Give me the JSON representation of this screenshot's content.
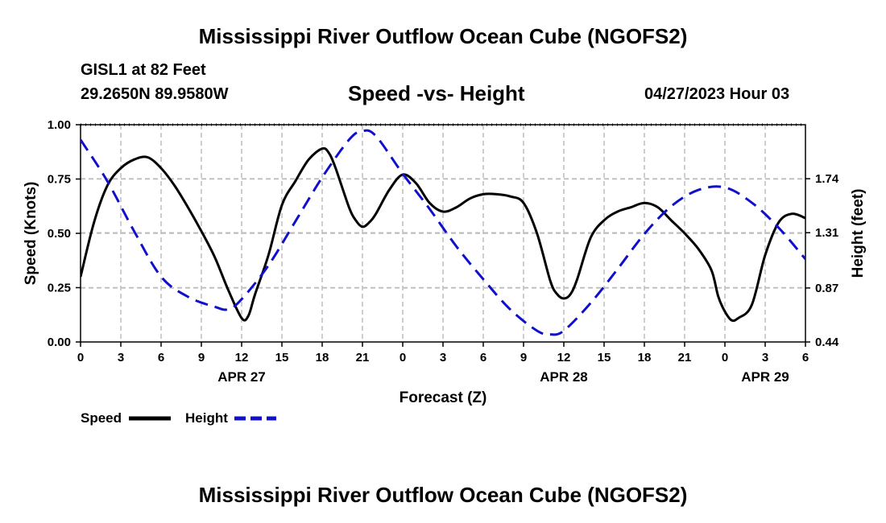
{
  "header": {
    "title": "Mississippi River Outflow Ocean Cube (NGOFS2)",
    "station": "GISL1 at 82 Feet",
    "coords": "29.2650N  89.9580W",
    "subtitle": "Speed -vs- Height",
    "datetime": "04/27/2023 Hour 03"
  },
  "footer": {
    "title": "Mississippi River Outflow Ocean Cube (NGOFS2)"
  },
  "colors": {
    "speed": "#000000",
    "height": "#1010cc",
    "grid": "#bdbdbd"
  },
  "chart_data": {
    "type": "line",
    "xlabel": "Forecast (Z)",
    "ylabel": "Speed (Knots)",
    "y2label": "Height (feet)",
    "xlim": [
      0,
      54
    ],
    "ylim": [
      0,
      1
    ],
    "y2lim": [
      0.44,
      2.17
    ],
    "x_tick_labels": [
      "0",
      "3",
      "6",
      "9",
      "12",
      "15",
      "18",
      "21",
      "0",
      "3",
      "6",
      "9",
      "12",
      "15",
      "18",
      "21",
      "0",
      "3",
      "6"
    ],
    "y_ticks": [
      "0.00",
      "0.25",
      "0.50",
      "0.75",
      "1.00"
    ],
    "y2_ticks": [
      "0.44",
      "0.87",
      "1.31",
      "1.74"
    ],
    "date_labels": [
      {
        "x": 12,
        "label": "APR 27"
      },
      {
        "x": 36,
        "label": "APR 28"
      },
      {
        "x": 51,
        "label": "APR 29"
      }
    ],
    "legend": [
      "Speed",
      "Height"
    ],
    "series": [
      {
        "name": "Speed",
        "axis": "left",
        "x": [
          0,
          1,
          2,
          3,
          4,
          5,
          6,
          7,
          8,
          9,
          10,
          11,
          12,
          12.5,
          13,
          14,
          15,
          16,
          17,
          18,
          18.5,
          19,
          20,
          20.5,
          21,
          21.5,
          22,
          23,
          24,
          25,
          26,
          27,
          28,
          29,
          30,
          31,
          32,
          33,
          34,
          35,
          35.5,
          36,
          36.5,
          37,
          38,
          39,
          40,
          41,
          42,
          43,
          44,
          45,
          46,
          47,
          47.5,
          48,
          48.5,
          49,
          50,
          51,
          52,
          53,
          54
        ],
        "values": [
          0.3,
          0.55,
          0.72,
          0.8,
          0.84,
          0.85,
          0.8,
          0.72,
          0.62,
          0.51,
          0.39,
          0.24,
          0.11,
          0.12,
          0.22,
          0.4,
          0.63,
          0.74,
          0.84,
          0.89,
          0.87,
          0.8,
          0.62,
          0.56,
          0.53,
          0.55,
          0.59,
          0.7,
          0.77,
          0.73,
          0.64,
          0.6,
          0.62,
          0.66,
          0.68,
          0.68,
          0.67,
          0.64,
          0.5,
          0.28,
          0.22,
          0.2,
          0.22,
          0.29,
          0.48,
          0.56,
          0.6,
          0.62,
          0.64,
          0.62,
          0.56,
          0.5,
          0.43,
          0.33,
          0.21,
          0.14,
          0.1,
          0.11,
          0.17,
          0.4,
          0.55,
          0.59,
          0.57
        ]
      },
      {
        "name": "Height",
        "axis": "right",
        "x": [
          0,
          2,
          4,
          6,
          8,
          10,
          11,
          12,
          14,
          16,
          18,
          20,
          21,
          22,
          24,
          26,
          28,
          30,
          32,
          34,
          35,
          36,
          38,
          40,
          42,
          44,
          46,
          48,
          50,
          52,
          54
        ],
        "values": [
          2.05,
          1.72,
          1.32,
          0.96,
          0.8,
          0.72,
          0.7,
          0.78,
          1.05,
          1.4,
          1.75,
          2.05,
          2.12,
          2.08,
          1.78,
          1.5,
          1.2,
          0.94,
          0.7,
          0.53,
          0.5,
          0.53,
          0.75,
          1.02,
          1.3,
          1.52,
          1.65,
          1.67,
          1.55,
          1.35,
          1.1
        ]
      }
    ]
  }
}
